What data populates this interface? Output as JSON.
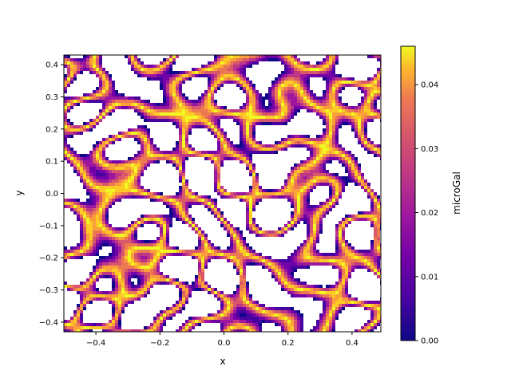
{
  "chart_data": {
    "type": "heatmap",
    "xlabel": "x",
    "ylabel": "y",
    "xlim": [
      -0.5,
      0.49
    ],
    "ylim": [
      -0.43,
      0.43
    ],
    "x_ticks": [
      -0.4,
      -0.2,
      0.0,
      0.2,
      0.4
    ],
    "x_tick_labels": [
      "−0.4",
      "−0.2",
      "0.0",
      "0.2",
      "0.4"
    ],
    "y_ticks": [
      -0.4,
      -0.3,
      -0.2,
      -0.1,
      0.0,
      0.1,
      0.2,
      0.3,
      0.4
    ],
    "y_tick_labels": [
      "−0.4",
      "−0.3",
      "−0.2",
      "−0.1",
      "0.0",
      "0.1",
      "0.2",
      "0.3",
      "0.4"
    ],
    "colorbar": {
      "label": "microGal",
      "range": [
        0.0,
        0.046
      ],
      "ticks": [
        0.0,
        0.01,
        0.02,
        0.03,
        0.04
      ],
      "tick_labels": [
        "0.00",
        "0.01",
        "0.02",
        "0.03",
        "0.04"
      ],
      "colormap": "plasma"
    },
    "description_values": "Random contour-band field; white regions are masked (no data), bands range from dark purple (~0.00) at edges to yellow (~0.046)."
  }
}
